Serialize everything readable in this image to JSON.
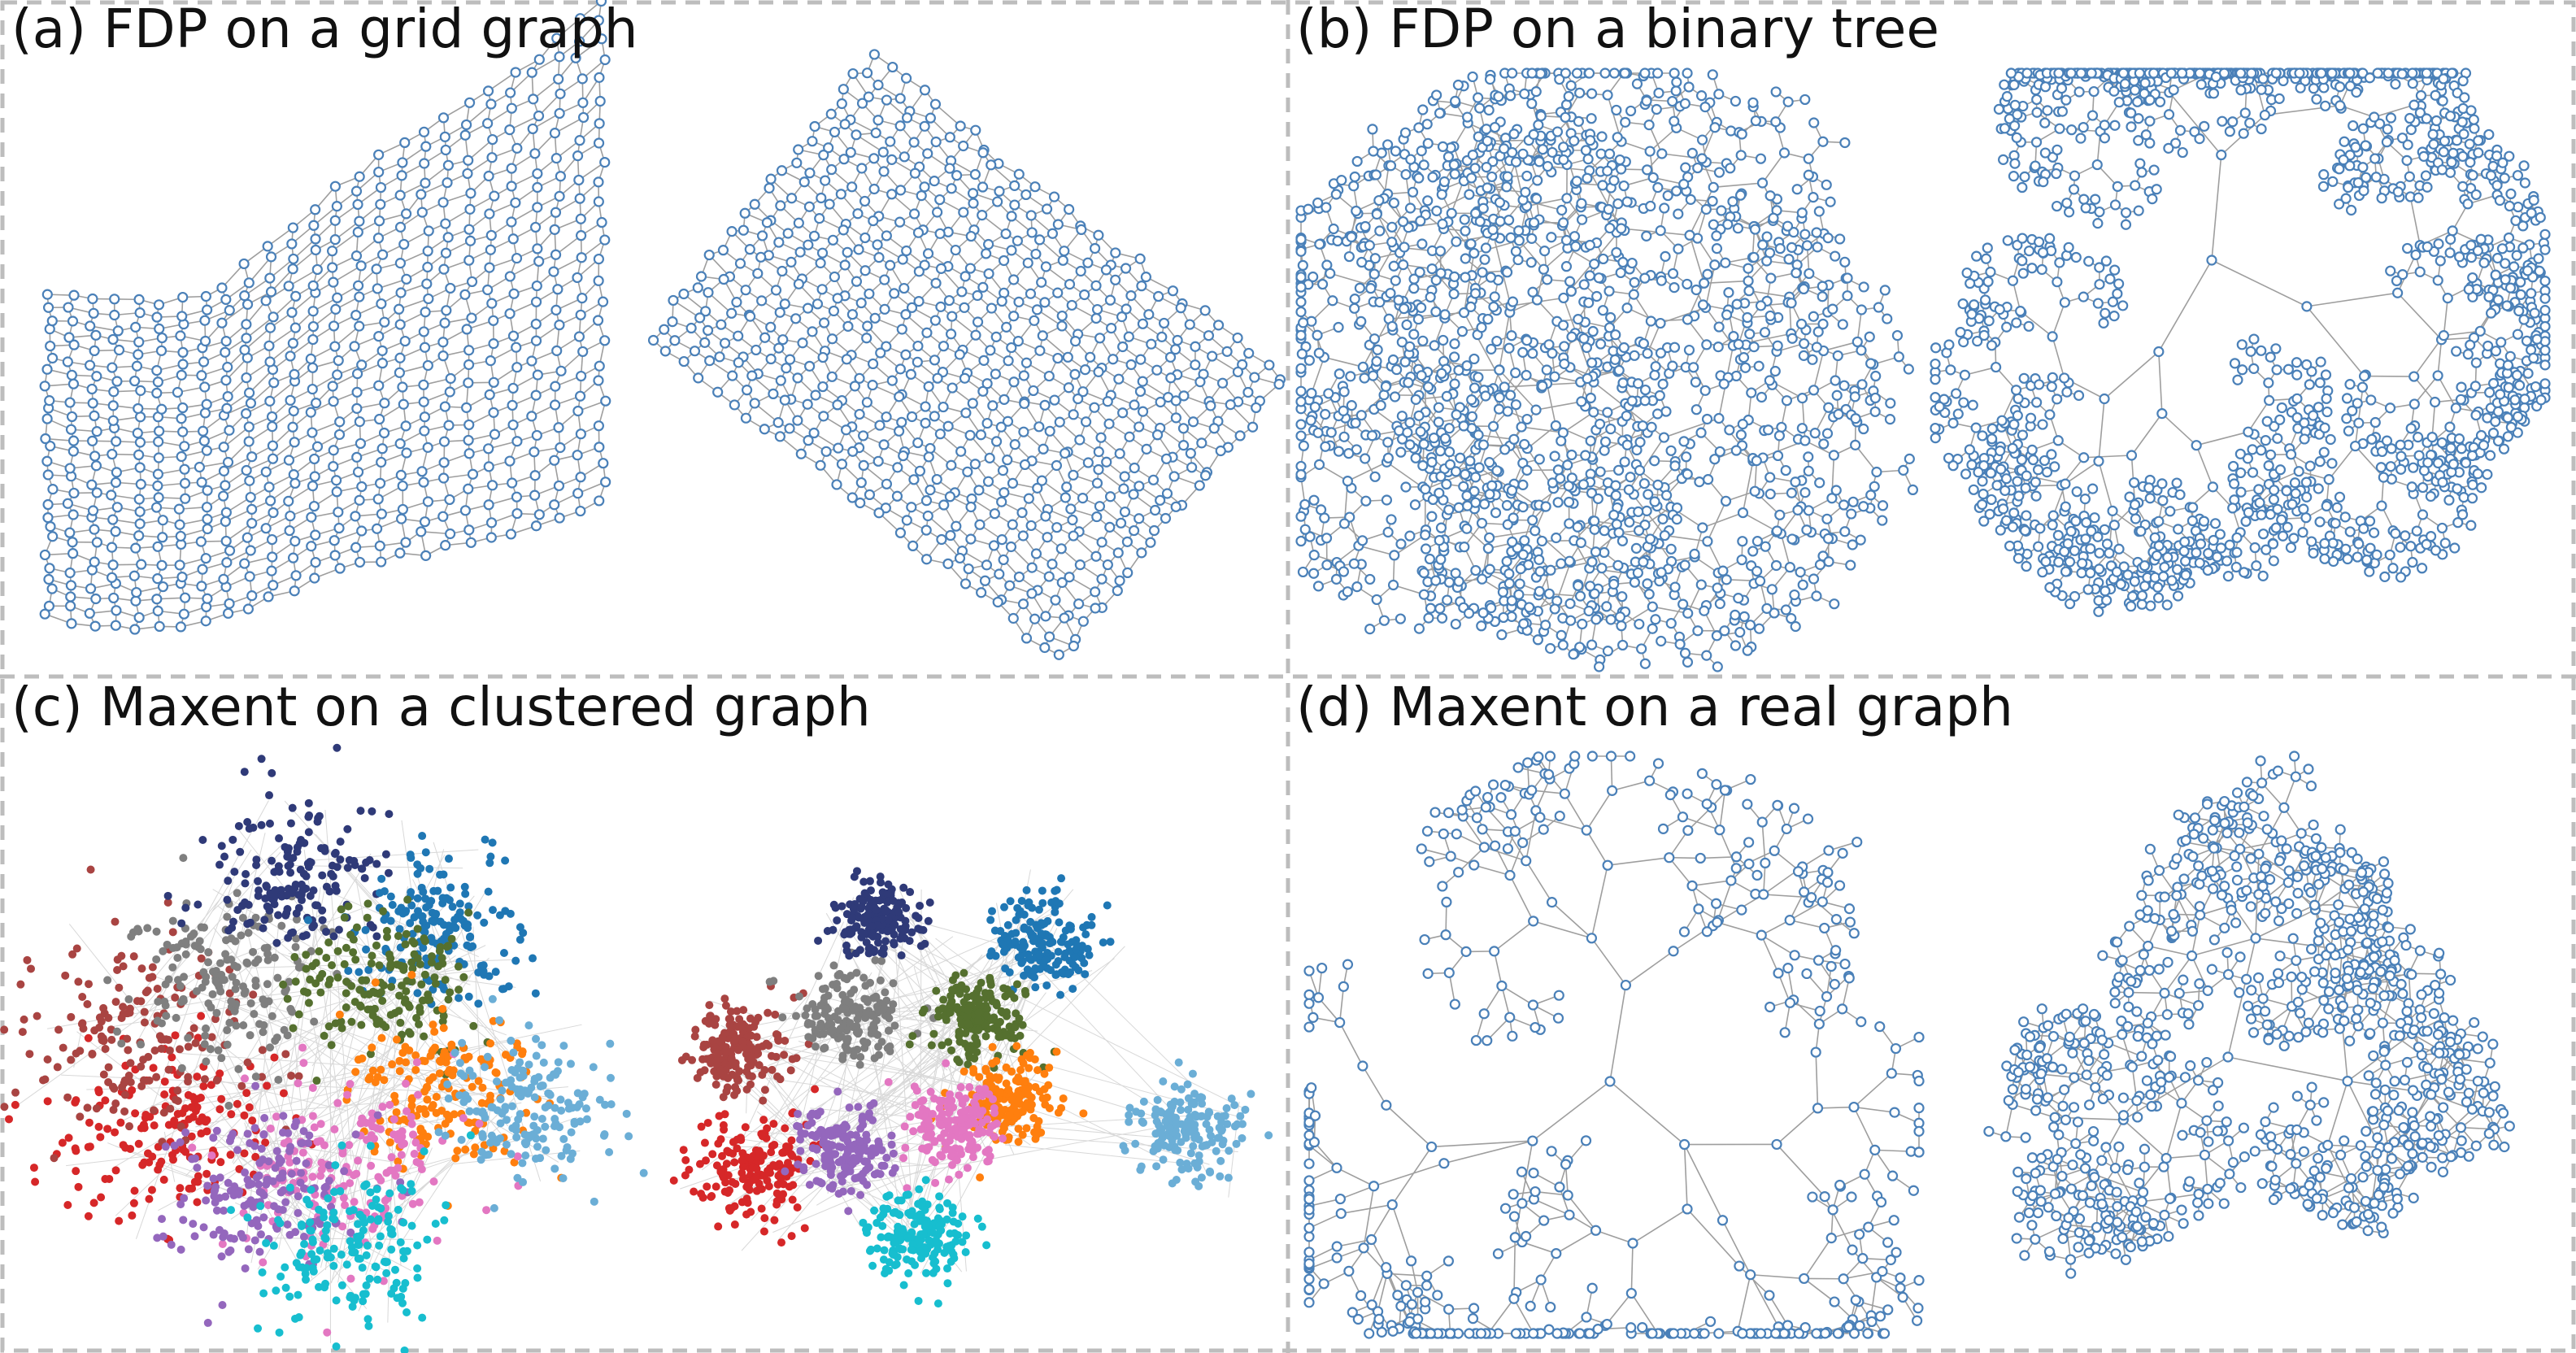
{
  "panels": [
    {
      "title": "(a) FDP on a grid graph"
    },
    {
      "title": "(b) FDP on a binary tree"
    },
    {
      "title": "(c) Maxent on a clustered graph"
    },
    {
      "title": "(d) Maxent on a real graph"
    }
  ]
}
